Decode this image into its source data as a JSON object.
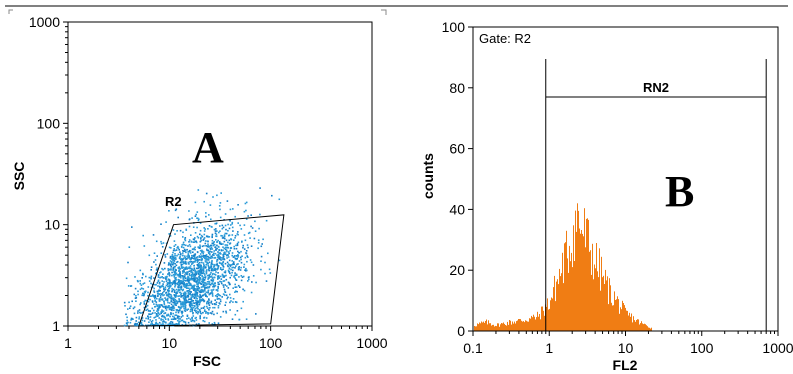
{
  "chart_data": [
    {
      "type": "scatter",
      "panel_letter": "A",
      "xlabel": "FSC",
      "ylabel": "SSC",
      "xscale": "log",
      "yscale": "log",
      "xlim": [
        1,
        1000
      ],
      "ylim": [
        1,
        1000
      ],
      "x_ticks": [
        "1",
        "10",
        "100",
        "1000"
      ],
      "y_ticks": [
        "1",
        "10",
        "100",
        "1000"
      ],
      "point_color": "#2a9bd8",
      "gate": {
        "name": "R2",
        "polygon": [
          [
            5,
            1
          ],
          [
            11,
            10
          ],
          [
            135,
            12.5
          ],
          [
            100,
            1.05
          ]
        ]
      },
      "points_summary": {
        "description_values": "dense cloud centered near FSC 15, SSC 2.5",
        "center_fsc": 15,
        "center_ssc": 2.5,
        "n_points": 2400
      }
    },
    {
      "type": "bar",
      "panel_letter": "B",
      "xlabel": "FL2",
      "ylabel": "counts",
      "xscale": "log",
      "xlim": [
        0.1,
        1000
      ],
      "ylim": [
        0,
        100
      ],
      "x_ticks": [
        "0.1",
        "1",
        "10",
        "100",
        "1000"
      ],
      "y_ticks": [
        "0",
        "20",
        "40",
        "60",
        "80",
        "100"
      ],
      "bar_color": "#f07d14",
      "gate_text": "Gate: R2",
      "marker": {
        "name": "RN2",
        "range": [
          0.9,
          700
        ]
      },
      "histogram": {
        "peak_fl2": 2.3,
        "peak_counts": 39,
        "bins": [
          {
            "x": 0.1,
            "y": 2
          },
          {
            "x": 0.15,
            "y": 3
          },
          {
            "x": 0.2,
            "y": 2
          },
          {
            "x": 0.3,
            "y": 3
          },
          {
            "x": 0.5,
            "y": 4
          },
          {
            "x": 0.7,
            "y": 5
          },
          {
            "x": 1.0,
            "y": 10
          },
          {
            "x": 1.3,
            "y": 18
          },
          {
            "x": 1.6,
            "y": 25
          },
          {
            "x": 2.0,
            "y": 33
          },
          {
            "x": 2.3,
            "y": 39
          },
          {
            "x": 3.0,
            "y": 32
          },
          {
            "x": 4.0,
            "y": 24
          },
          {
            "x": 6.0,
            "y": 14
          },
          {
            "x": 10,
            "y": 6
          },
          {
            "x": 15,
            "y": 3
          },
          {
            "x": 22,
            "y": 1
          }
        ]
      }
    }
  ]
}
